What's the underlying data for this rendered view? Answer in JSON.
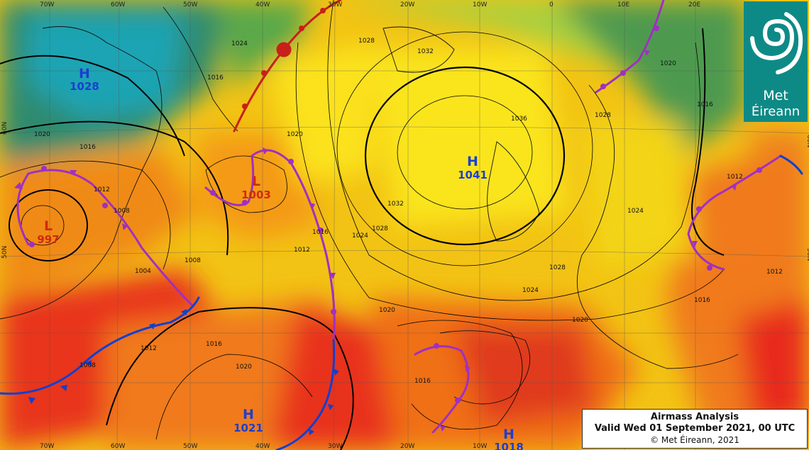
{
  "caption": {
    "title": "Airmass Analysis",
    "valid": "Valid Wed 01 September 2021, 00 UTC",
    "copyright": "© Met Éireann, 2021"
  },
  "logo": {
    "line1": "Met",
    "line2": "Éireann"
  },
  "longitudes_top": [
    "70W",
    "60W",
    "50W",
    "40W",
    "30W",
    "20W",
    "10W",
    "0",
    "10E",
    "20E"
  ],
  "longitudes_bottom": [
    "70W",
    "60W",
    "50W",
    "40W",
    "30W",
    "20W",
    "10W"
  ],
  "latitudes": [
    "60N",
    "50N"
  ],
  "pressure_systems": [
    {
      "type": "H",
      "value": "1028",
      "color": "#1a3fd0"
    },
    {
      "type": "L",
      "value": "997",
      "color": "#d02a10"
    },
    {
      "type": "L",
      "value": "1003",
      "color": "#d02a10"
    },
    {
      "type": "H",
      "value": "1041",
      "color": "#1a3fd0"
    },
    {
      "type": "H",
      "value": "1021",
      "color": "#1a3fd0"
    },
    {
      "type": "H",
      "value": "1018",
      "color": "#1a3fd0"
    }
  ],
  "isobar_labels": [
    "1024",
    "1020",
    "1016",
    "1012",
    "1008",
    "1004",
    "1016",
    "1028",
    "1032",
    "1036",
    "1032",
    "1028",
    "1024",
    "1020",
    "1016",
    "1012",
    "1008",
    "1020",
    "1016",
    "1012",
    "1008",
    "1012",
    "1016",
    "1020",
    "1024",
    "1028",
    "1016",
    "1020",
    "1024",
    "1028",
    "1020",
    "1012",
    "1016"
  ],
  "colors": {
    "high": "#1a3fd0",
    "low": "#d02a10",
    "warm_front": "#c8201a",
    "cold_front": "#1040d0",
    "occluded_front": "#a030c0"
  }
}
